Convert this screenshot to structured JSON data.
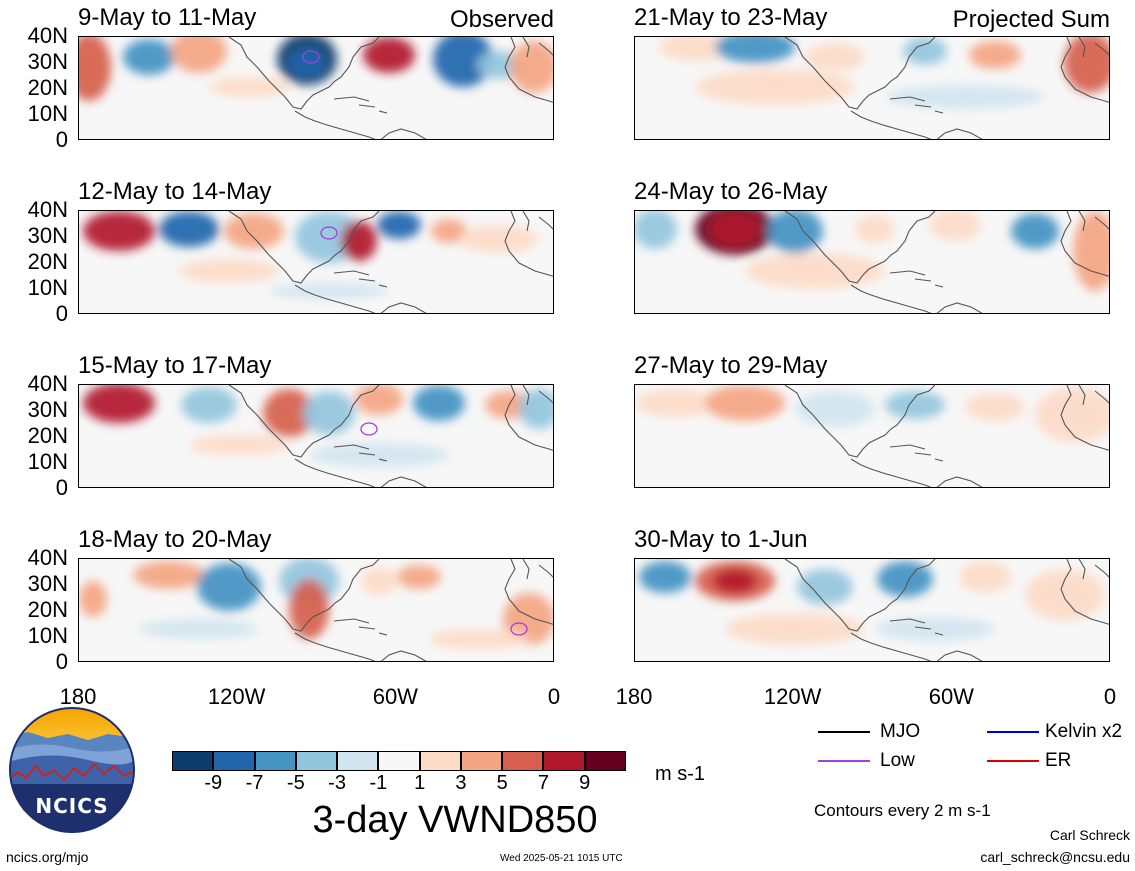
{
  "panels": {
    "observed_tag": "Observed",
    "projected_tag": "Projected Sum",
    "left": [
      {
        "date_range": "9-May to 11-May"
      },
      {
        "date_range": "12-May to 14-May"
      },
      {
        "date_range": "15-May to 17-May"
      },
      {
        "date_range": "18-May to 20-May"
      }
    ],
    "right": [
      {
        "date_range": "21-May to 23-May"
      },
      {
        "date_range": "24-May to 26-May"
      },
      {
        "date_range": "27-May to 29-May"
      },
      {
        "date_range": "30-May to 1-Jun"
      }
    ]
  },
  "axes": {
    "lat_ticks": [
      "40N",
      "30N",
      "20N",
      "10N",
      "0"
    ],
    "lon_ticks": [
      "180",
      "120W",
      "60W",
      "0"
    ]
  },
  "colorbar": {
    "labels": [
      "-9",
      "-7",
      "-5",
      "-3",
      "-1",
      "1",
      "3",
      "5",
      "7",
      "9"
    ],
    "colors": [
      "#0b3d6f",
      "#2166ac",
      "#4393c3",
      "#92c5de",
      "#d1e5f0",
      "#f7f7f7",
      "#fddbc7",
      "#f4a582",
      "#d6604d",
      "#b2182b",
      "#67001f"
    ],
    "units": "m s-1"
  },
  "title": "3-day VWND850",
  "legend": {
    "items": [
      {
        "label": "MJO",
        "color": "#000000"
      },
      {
        "label": "Kelvin x2",
        "color": "#0000cc"
      },
      {
        "label": "Low",
        "color": "#a040e0"
      },
      {
        "label": "ER",
        "color": "#dd0000"
      }
    ],
    "contour_note": "Contours every 2 m s-1"
  },
  "logo": {
    "text": "NCICS"
  },
  "footer": {
    "site": "ncics.org/mjo",
    "timestamp": "Wed 2025-05-21 1015 UTC",
    "author": "Carl Schreck",
    "email": "carl_schreck@ncsu.edu"
  }
}
